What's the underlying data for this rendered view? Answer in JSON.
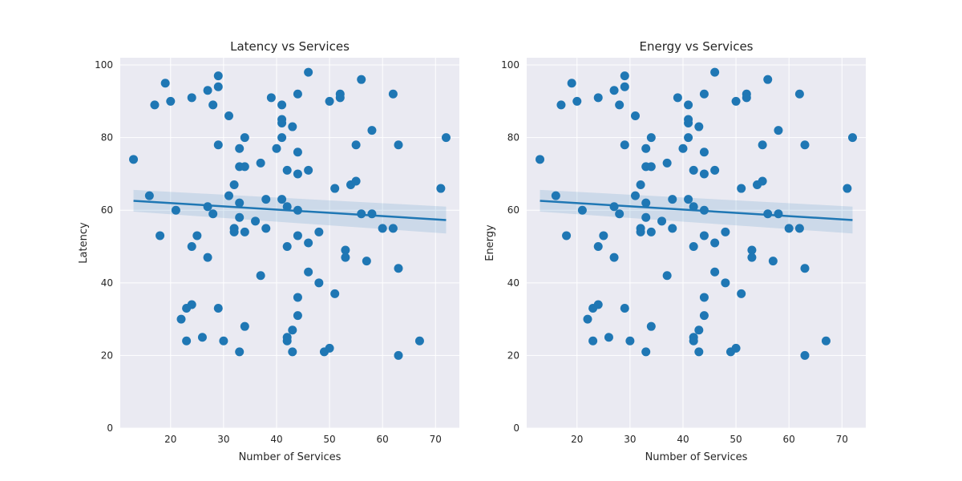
{
  "chart_data": [
    {
      "type": "scatter",
      "title": "Latency vs Services",
      "xlabel": "Number of Services",
      "ylabel": "Latency",
      "xlim": [
        10.5,
        74.5
      ],
      "ylim": [
        0,
        102
      ],
      "xticks": [
        20,
        30,
        40,
        50,
        60,
        70
      ],
      "yticks": [
        0,
        20,
        40,
        60,
        80,
        100
      ],
      "grid": true,
      "color": "#1f77b4",
      "regression": {
        "x_range": [
          13,
          72
        ],
        "y_start": 62.6,
        "y_end": 57.3,
        "ci_start": [
          59.6,
          65.6
        ],
        "ci_end": [
          53.6,
          61.0
        ]
      },
      "points": [
        [
          13,
          74
        ],
        [
          16,
          64
        ],
        [
          17,
          89
        ],
        [
          18,
          53
        ],
        [
          19,
          95
        ],
        [
          20,
          90
        ],
        [
          21,
          60
        ],
        [
          22,
          30
        ],
        [
          23,
          33
        ],
        [
          23,
          24
        ],
        [
          24,
          91
        ],
        [
          24,
          50
        ],
        [
          24,
          34
        ],
        [
          25,
          53
        ],
        [
          26,
          25
        ],
        [
          27,
          93
        ],
        [
          27,
          61
        ],
        [
          27,
          47
        ],
        [
          28,
          89
        ],
        [
          28,
          59
        ],
        [
          29,
          97
        ],
        [
          29,
          94
        ],
        [
          29,
          78
        ],
        [
          29,
          33
        ],
        [
          30,
          24
        ],
        [
          31,
          86
        ],
        [
          31,
          64
        ],
        [
          32,
          67
        ],
        [
          32,
          55
        ],
        [
          32,
          54
        ],
        [
          33,
          77
        ],
        [
          33,
          72
        ],
        [
          33,
          62
        ],
        [
          33,
          58
        ],
        [
          33,
          21
        ],
        [
          34,
          80
        ],
        [
          34,
          72
        ],
        [
          34,
          54
        ],
        [
          34,
          28
        ],
        [
          36,
          57
        ],
        [
          37,
          73
        ],
        [
          37,
          42
        ],
        [
          38,
          63
        ],
        [
          38,
          55
        ],
        [
          39,
          91
        ],
        [
          40,
          77
        ],
        [
          41,
          89
        ],
        [
          41,
          85
        ],
        [
          41,
          84
        ],
        [
          41,
          80
        ],
        [
          41,
          63
        ],
        [
          42,
          71
        ],
        [
          42,
          61
        ],
        [
          42,
          50
        ],
        [
          42,
          25
        ],
        [
          42,
          24
        ],
        [
          43,
          83
        ],
        [
          43,
          27
        ],
        [
          43,
          21
        ],
        [
          44,
          92
        ],
        [
          44,
          76
        ],
        [
          44,
          70
        ],
        [
          44,
          60
        ],
        [
          44,
          53
        ],
        [
          44,
          36
        ],
        [
          44,
          31
        ],
        [
          46,
          98
        ],
        [
          46,
          71
        ],
        [
          46,
          51
        ],
        [
          46,
          43
        ],
        [
          48,
          54
        ],
        [
          48,
          40
        ],
        [
          49,
          21
        ],
        [
          50,
          90
        ],
        [
          50,
          22
        ],
        [
          51,
          66
        ],
        [
          51,
          37
        ],
        [
          52,
          92
        ],
        [
          52,
          91
        ],
        [
          53,
          49
        ],
        [
          53,
          47
        ],
        [
          54,
          67
        ],
        [
          55,
          78
        ],
        [
          55,
          68
        ],
        [
          56,
          96
        ],
        [
          56,
          59
        ],
        [
          57,
          46
        ],
        [
          58,
          82
        ],
        [
          58,
          59
        ],
        [
          60,
          55
        ],
        [
          62,
          92
        ],
        [
          62,
          55
        ],
        [
          63,
          78
        ],
        [
          63,
          44
        ],
        [
          63,
          20
        ],
        [
          67,
          24
        ],
        [
          71,
          66
        ],
        [
          72,
          80
        ]
      ]
    },
    {
      "type": "scatter",
      "title": "Energy vs Services",
      "xlabel": "Number of Services",
      "ylabel": "Energy",
      "xlim": [
        10.5,
        74.5
      ],
      "ylim": [
        0,
        102
      ],
      "xticks": [
        20,
        30,
        40,
        50,
        60,
        70
      ],
      "yticks": [
        0,
        20,
        40,
        60,
        80,
        100
      ],
      "grid": true,
      "color": "#1f77b4",
      "regression": {
        "x_range": [
          13,
          72
        ],
        "y_start": 62.6,
        "y_end": 57.3,
        "ci_start": [
          59.6,
          65.6
        ],
        "ci_end": [
          53.6,
          61.0
        ]
      },
      "points": [
        [
          13,
          74
        ],
        [
          16,
          64
        ],
        [
          17,
          89
        ],
        [
          18,
          53
        ],
        [
          19,
          95
        ],
        [
          20,
          90
        ],
        [
          21,
          60
        ],
        [
          22,
          30
        ],
        [
          23,
          33
        ],
        [
          23,
          24
        ],
        [
          24,
          91
        ],
        [
          24,
          50
        ],
        [
          24,
          34
        ],
        [
          25,
          53
        ],
        [
          26,
          25
        ],
        [
          27,
          93
        ],
        [
          27,
          61
        ],
        [
          27,
          47
        ],
        [
          28,
          89
        ],
        [
          28,
          59
        ],
        [
          29,
          97
        ],
        [
          29,
          94
        ],
        [
          29,
          78
        ],
        [
          29,
          33
        ],
        [
          30,
          24
        ],
        [
          31,
          86
        ],
        [
          31,
          64
        ],
        [
          32,
          67
        ],
        [
          32,
          55
        ],
        [
          32,
          54
        ],
        [
          33,
          77
        ],
        [
          33,
          72
        ],
        [
          33,
          62
        ],
        [
          33,
          58
        ],
        [
          33,
          21
        ],
        [
          34,
          80
        ],
        [
          34,
          72
        ],
        [
          34,
          54
        ],
        [
          34,
          28
        ],
        [
          36,
          57
        ],
        [
          37,
          73
        ],
        [
          37,
          42
        ],
        [
          38,
          63
        ],
        [
          38,
          55
        ],
        [
          39,
          91
        ],
        [
          40,
          77
        ],
        [
          41,
          89
        ],
        [
          41,
          85
        ],
        [
          41,
          84
        ],
        [
          41,
          80
        ],
        [
          41,
          63
        ],
        [
          42,
          71
        ],
        [
          42,
          61
        ],
        [
          42,
          50
        ],
        [
          42,
          25
        ],
        [
          42,
          24
        ],
        [
          43,
          83
        ],
        [
          43,
          27
        ],
        [
          43,
          21
        ],
        [
          44,
          92
        ],
        [
          44,
          76
        ],
        [
          44,
          70
        ],
        [
          44,
          60
        ],
        [
          44,
          53
        ],
        [
          44,
          36
        ],
        [
          44,
          31
        ],
        [
          46,
          98
        ],
        [
          46,
          71
        ],
        [
          46,
          51
        ],
        [
          46,
          43
        ],
        [
          48,
          54
        ],
        [
          48,
          40
        ],
        [
          49,
          21
        ],
        [
          50,
          90
        ],
        [
          50,
          22
        ],
        [
          51,
          66
        ],
        [
          51,
          37
        ],
        [
          52,
          92
        ],
        [
          52,
          91
        ],
        [
          53,
          49
        ],
        [
          53,
          47
        ],
        [
          54,
          67
        ],
        [
          55,
          78
        ],
        [
          55,
          68
        ],
        [
          56,
          96
        ],
        [
          56,
          59
        ],
        [
          57,
          46
        ],
        [
          58,
          82
        ],
        [
          58,
          59
        ],
        [
          60,
          55
        ],
        [
          62,
          92
        ],
        [
          62,
          55
        ],
        [
          63,
          78
        ],
        [
          63,
          44
        ],
        [
          63,
          20
        ],
        [
          67,
          24
        ],
        [
          71,
          66
        ],
        [
          72,
          80
        ]
      ]
    }
  ]
}
